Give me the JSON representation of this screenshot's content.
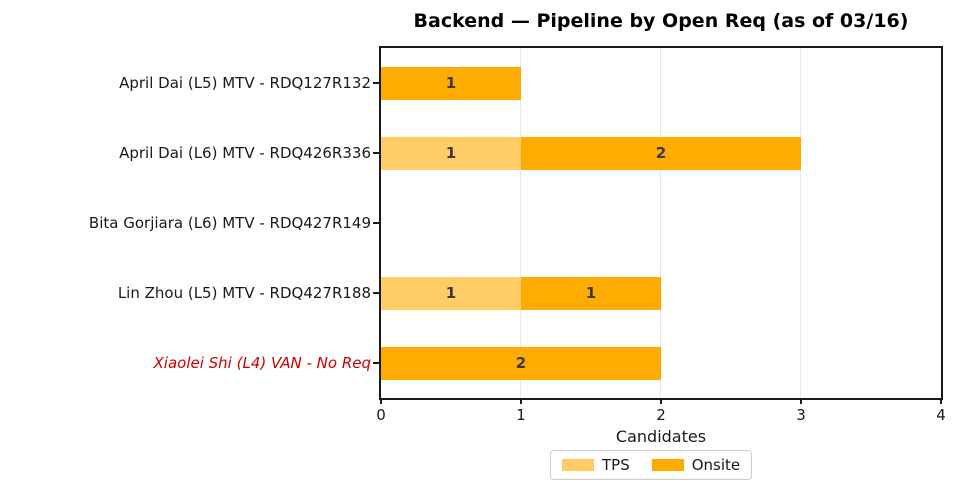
{
  "chart_data": {
    "type": "bar",
    "orientation": "horizontal",
    "stacked": true,
    "title": "Backend — Pipeline by Open Req (as of 03/16)",
    "xlabel": "Candidates",
    "xlim": [
      0,
      4
    ],
    "xticks": [
      "0",
      "1",
      "2",
      "3",
      "4"
    ],
    "grid": "vertical-gridlines-at-1-2-3",
    "legend_position": "below-center",
    "categories": [
      "April Dai (L5) MTV - RDQ127R132",
      "April Dai (L6) MTV - RDQ426R336",
      "Bita Gorjiara (L6) MTV - RDQ427R149",
      "Lin Zhou (L5) MTV - RDQ427R188",
      "Xiaolei Shi (L4) VAN - No Req"
    ],
    "flagged_category_index": 4,
    "flagged_category_color": "#CC0000",
    "series": [
      {
        "name": "TPS",
        "color": "#FFCC66",
        "values": [
          0,
          1,
          0,
          1,
          0
        ]
      },
      {
        "name": "Onsite",
        "color": "#FFAB00",
        "values": [
          1,
          2,
          0,
          1,
          2
        ]
      }
    ],
    "bar_label_color": "#3A3A3A",
    "axis_frame_color": "#1A1A1A",
    "grid_color": "#E8E8E8",
    "background_color": "#FFFFFF"
  }
}
